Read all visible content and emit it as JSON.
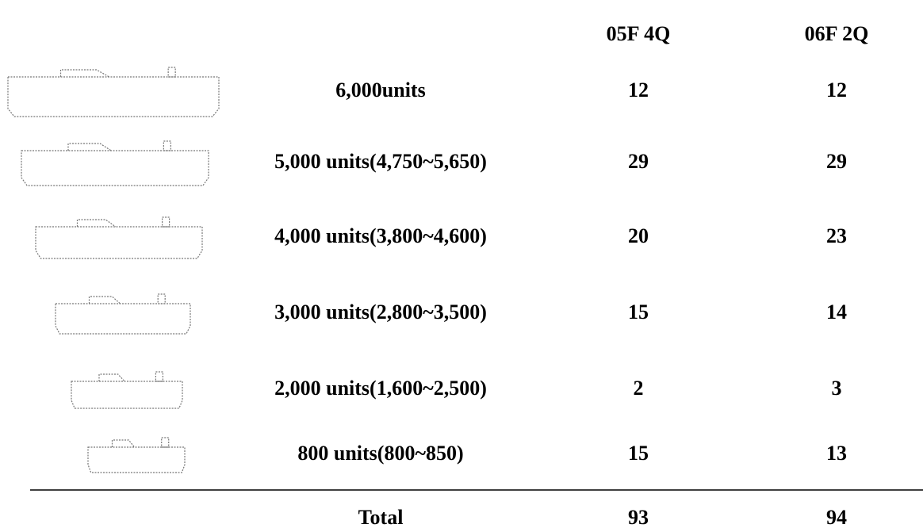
{
  "table": {
    "headers": [
      "05F 4Q",
      "06F 2Q"
    ],
    "rows": [
      [
        "6,000units",
        12,
        12
      ],
      [
        "5,000 units(4,750~5,650)",
        29,
        29
      ],
      [
        "4,000 units(3,800~4,600)",
        20,
        23
      ],
      [
        "3,000 units(2,800~3,500)",
        15,
        14
      ],
      [
        "2,000 units(1,600~2,500)",
        2,
        3
      ],
      [
        "800 units(800~850)",
        15,
        13
      ]
    ],
    "total": [
      "Total",
      93,
      94
    ]
  }
}
